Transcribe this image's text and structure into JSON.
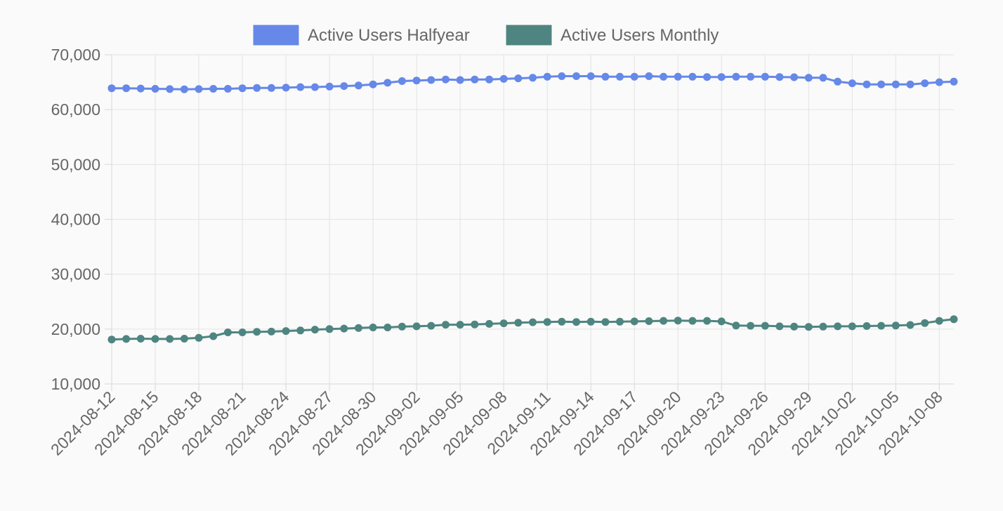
{
  "chart_data": {
    "type": "line",
    "x_start": "2024-08-12",
    "x_end": "2024-10-09",
    "x_tick_labels": [
      "2024-08-12",
      "2024-08-15",
      "2024-08-18",
      "2024-08-21",
      "2024-08-24",
      "2024-08-27",
      "2024-08-30",
      "2024-09-02",
      "2024-09-05",
      "2024-09-08",
      "2024-09-11",
      "2024-09-14",
      "2024-09-17",
      "2024-09-20",
      "2024-09-23",
      "2024-09-26",
      "2024-09-29",
      "2024-10-02",
      "2024-10-05",
      "2024-10-08"
    ],
    "y_tick_labels": [
      "10,000",
      "20,000",
      "30,000",
      "40,000",
      "50,000",
      "60,000",
      "70,000"
    ],
    "ylim": [
      10000,
      70000
    ],
    "grid": true,
    "legend_position": "top",
    "series": [
      {
        "name": "Active Users Halfyear",
        "color": "#6688e8",
        "values": [
          63900,
          63900,
          63850,
          63800,
          63750,
          63700,
          63750,
          63800,
          63800,
          63900,
          63950,
          63950,
          64000,
          64100,
          64100,
          64200,
          64300,
          64400,
          64600,
          64900,
          65200,
          65300,
          65400,
          65500,
          65400,
          65500,
          65500,
          65600,
          65700,
          65800,
          66000,
          66100,
          66100,
          66100,
          66000,
          66000,
          66000,
          66100,
          66000,
          66000,
          66000,
          65950,
          65950,
          66000,
          66000,
          66000,
          65950,
          65900,
          65800,
          65800,
          65100,
          64800,
          64600,
          64600,
          64600,
          64600,
          64800,
          65000,
          65100
        ]
      },
      {
        "name": "Active Users Monthly",
        "color": "#4f8580",
        "values": [
          18100,
          18200,
          18250,
          18200,
          18200,
          18250,
          18400,
          18700,
          19400,
          19400,
          19500,
          19550,
          19650,
          19750,
          19900,
          20000,
          20100,
          20200,
          20300,
          20300,
          20450,
          20500,
          20600,
          20800,
          20800,
          20850,
          20950,
          21050,
          21150,
          21250,
          21300,
          21350,
          21300,
          21350,
          21300,
          21350,
          21400,
          21450,
          21500,
          21550,
          21500,
          21500,
          21400,
          20650,
          20600,
          20600,
          20500,
          20450,
          20400,
          20450,
          20500,
          20500,
          20550,
          20600,
          20650,
          20750,
          21100,
          21500,
          21800
        ]
      }
    ]
  }
}
